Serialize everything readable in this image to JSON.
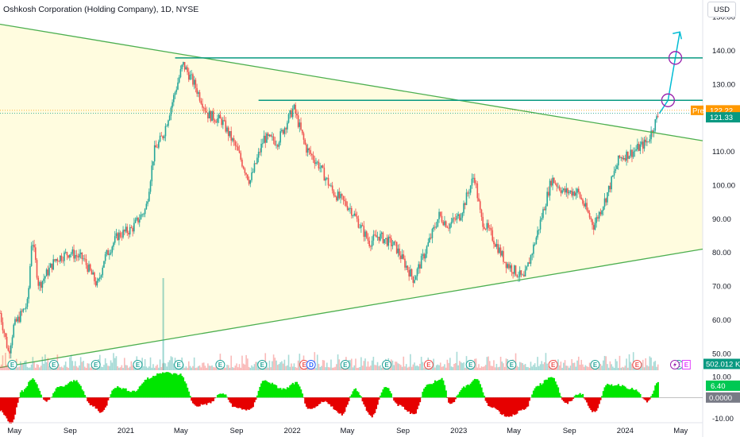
{
  "header": {
    "title": "Oshkosh Corporation (Holding Company), 1D, NYSE"
  },
  "currency_button": "USD",
  "colors": {
    "up": "#26a69a",
    "down": "#ef5350",
    "trend": "#4caf50",
    "level": "#089981",
    "arrow": "#00bcd4",
    "triangle_fill": "#fff9c4",
    "pre": "#ff9800",
    "osc_up": "#00e600",
    "osc_down": "#e60000",
    "circle": "#9c27b0"
  },
  "price_axis_labels": [
    "150.00",
    "140.00",
    "130.00",
    "120.00",
    "110.00",
    "100.00",
    "90.00",
    "80.00",
    "70.00",
    "60.00",
    "50.00"
  ],
  "osc_axis_labels": [
    "10.00",
    "-10.00"
  ],
  "tags": {
    "pre_label": "Pre",
    "pre_value": "122.22",
    "last_value": "121.33",
    "volume": "502.012 K",
    "osc_value": "6.40",
    "osc_zero": "0.0000"
  },
  "time_axis_labels": [
    "May",
    "Sep",
    "2021",
    "May",
    "Sep",
    "2022",
    "May",
    "Sep",
    "2023",
    "May",
    "Sep",
    "2024",
    "May"
  ],
  "chart_data": {
    "type": "candlestick",
    "title": "Oshkosh Corporation (Holding Company), 1D, NYSE",
    "y_range": [
      45,
      155
    ],
    "osc_range": [
      -12,
      13
    ],
    "x_axis": {
      "start": "2020-04-01",
      "end": "2024-06-20"
    },
    "candles_close_path": [
      [
        "2020-04-01",
        62
      ],
      [
        "2020-04-20",
        50
      ],
      [
        "2020-05-01",
        58
      ],
      [
        "2020-06-01",
        65
      ],
      [
        "2020-06-10",
        85
      ],
      [
        "2020-06-25",
        70
      ],
      [
        "2020-08-01",
        78
      ],
      [
        "2020-09-01",
        80
      ],
      [
        "2020-10-01",
        78
      ],
      [
        "2020-11-01",
        70
      ],
      [
        "2020-11-15",
        78
      ],
      [
        "2020-12-15",
        85
      ],
      [
        "2021-01-15",
        87
      ],
      [
        "2021-02-15",
        93
      ],
      [
        "2021-03-05",
        110
      ],
      [
        "2021-03-25",
        115
      ],
      [
        "2021-05-07",
        136
      ],
      [
        "2021-06-01",
        130
      ],
      [
        "2021-07-01",
        121
      ],
      [
        "2021-08-01",
        119
      ],
      [
        "2021-09-01",
        111
      ],
      [
        "2021-10-01",
        101
      ],
      [
        "2021-11-01",
        114
      ],
      [
        "2021-12-01",
        113
      ],
      [
        "2022-01-05",
        123
      ],
      [
        "2022-02-01",
        111
      ],
      [
        "2022-03-01",
        106
      ],
      [
        "2022-04-01",
        98
      ],
      [
        "2022-05-10",
        93
      ],
      [
        "2022-06-20",
        83
      ],
      [
        "2022-07-10",
        85
      ],
      [
        "2022-08-15",
        82
      ],
      [
        "2022-09-25",
        72
      ],
      [
        "2022-10-20",
        80
      ],
      [
        "2022-11-20",
        91
      ],
      [
        "2022-12-10",
        88
      ],
      [
        "2023-01-05",
        91
      ],
      [
        "2023-02-05",
        103
      ],
      [
        "2023-02-20",
        90
      ],
      [
        "2023-03-15",
        85
      ],
      [
        "2023-04-15",
        77
      ],
      [
        "2023-05-25",
        72
      ],
      [
        "2023-06-20",
        84
      ],
      [
        "2023-07-25",
        102
      ],
      [
        "2023-08-20",
        98
      ],
      [
        "2023-09-20",
        98
      ],
      [
        "2023-10-25",
        88
      ],
      [
        "2023-11-20",
        96
      ],
      [
        "2023-12-20",
        108
      ],
      [
        "2024-01-20",
        110
      ],
      [
        "2024-02-20",
        113
      ],
      [
        "2024-03-15",
        121
      ]
    ],
    "lines": [
      {
        "name": "upper-trendline",
        "points": [
          [
            "2020-04-01",
            147.8
          ],
          [
            "2024-06-20",
            113.2
          ]
        ]
      },
      {
        "name": "lower-trendline",
        "points": [
          [
            "2020-04-01",
            45.8
          ],
          [
            "2024-06-20",
            81
          ]
        ]
      },
      {
        "name": "resistance-138",
        "value": 137.8,
        "from": "2021-04-20",
        "to": "2024-06-20"
      },
      {
        "name": "resistance-125",
        "value": 125.2,
        "from": "2021-10-20",
        "to": "2024-06-20"
      }
    ],
    "projection": [
      [
        "2024-03-17",
        121.3
      ],
      [
        "2024-04-05",
        125.2
      ],
      [
        "2024-04-21",
        137.8
      ],
      [
        "2024-05-01",
        145.5
      ]
    ],
    "current_price": 121.33,
    "pre_market_price": 122.22,
    "volume_last": "502.012 K",
    "earnings_events": [
      "2020-04-28",
      "2020-07-28",
      "2020-10-28",
      "2021-01-28",
      "2021-04-28",
      "2021-07-28",
      "2021-10-28",
      "2022-01-28",
      "2022-04-28",
      "2022-07-28",
      "2022-10-28",
      "2023-01-28",
      "2023-04-28",
      "2023-07-28",
      "2023-10-28",
      "2024-01-28",
      "2024-04-28"
    ],
    "dividend_events": [
      "2022-02-12"
    ],
    "split_events": [
      "2024-04-20"
    ],
    "oscillator": {
      "last": 6.4,
      "zero": 0
    }
  }
}
